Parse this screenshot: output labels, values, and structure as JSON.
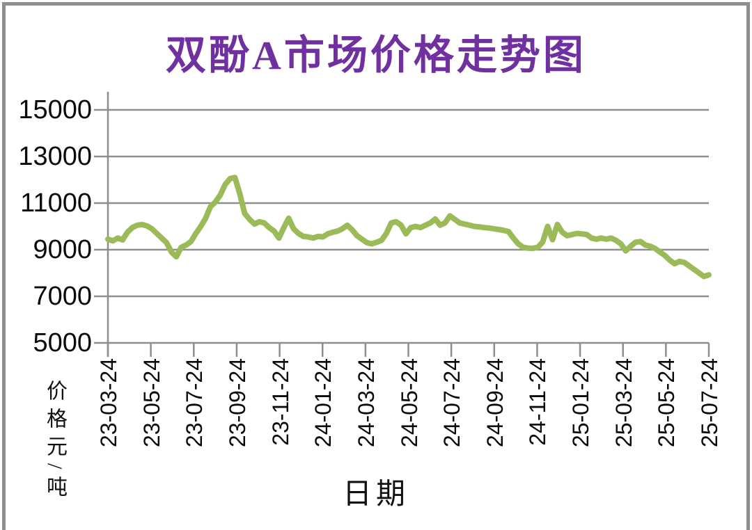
{
  "page": {
    "title": "双酚A市场价格走势图"
  },
  "colors": {
    "title": "#7030a0",
    "series_line": "#9bbb59",
    "axis_grid": "#8e8e8e",
    "tick_text": "#0a0a0a",
    "background": "#ffffff",
    "outer_border": "#8f8f8f"
  },
  "chart_data": {
    "type": "line",
    "title": "双酚A市场价格走势图",
    "xlabel": "日期",
    "ylabel": "价格元/吨",
    "ylim": [
      5000,
      15000
    ],
    "ytick_interval": 2000,
    "yticks": [
      15000,
      13000,
      11000,
      9000,
      7000,
      5000
    ],
    "xticks": [
      "23-03-24",
      "23-05-24",
      "23-07-24",
      "23-09-24",
      "23-11-24",
      "24-01-24",
      "24-03-24",
      "24-05-24",
      "24-07-24",
      "24-09-24",
      "24-11-24",
      "25-01-24",
      "25-03-24",
      "25-05-24",
      "25-07-24"
    ],
    "grid": "horizontal",
    "legend_position": "none",
    "series": [
      {
        "color": "#9bbb59",
        "values": [
          9450,
          9380,
          9500,
          9420,
          9750,
          9950,
          10050,
          10080,
          10020,
          9900,
          9700,
          9500,
          9300,
          8900,
          8700,
          9100,
          9200,
          9350,
          9700,
          10000,
          10350,
          10850,
          11050,
          11350,
          11800,
          12050,
          12100,
          11400,
          10550,
          10300,
          10100,
          10200,
          10150,
          9950,
          9800,
          9500,
          9950,
          10350,
          9900,
          9700,
          9570,
          9550,
          9500,
          9570,
          9550,
          9680,
          9750,
          9800,
          9900,
          10050,
          9850,
          9600,
          9450,
          9300,
          9250,
          9320,
          9400,
          9700,
          10150,
          10200,
          10050,
          9680,
          9950,
          10000,
          9950,
          10050,
          10150,
          10320,
          10050,
          10150,
          10450,
          10300,
          10150,
          10100,
          10050,
          10000,
          9980,
          9950,
          9930,
          9900,
          9870,
          9830,
          9780,
          9500,
          9250,
          9100,
          9070,
          9060,
          9100,
          9330,
          10000,
          9430,
          10080,
          9750,
          9600,
          9650,
          9700,
          9680,
          9650,
          9500,
          9450,
          9500,
          9450,
          9500,
          9400,
          9250,
          8950,
          9150,
          9320,
          9350,
          9200,
          9150,
          9050,
          8900,
          8750,
          8550,
          8400,
          8500,
          8450,
          8300,
          8150,
          8000,
          7850,
          7920
        ]
      }
    ]
  }
}
